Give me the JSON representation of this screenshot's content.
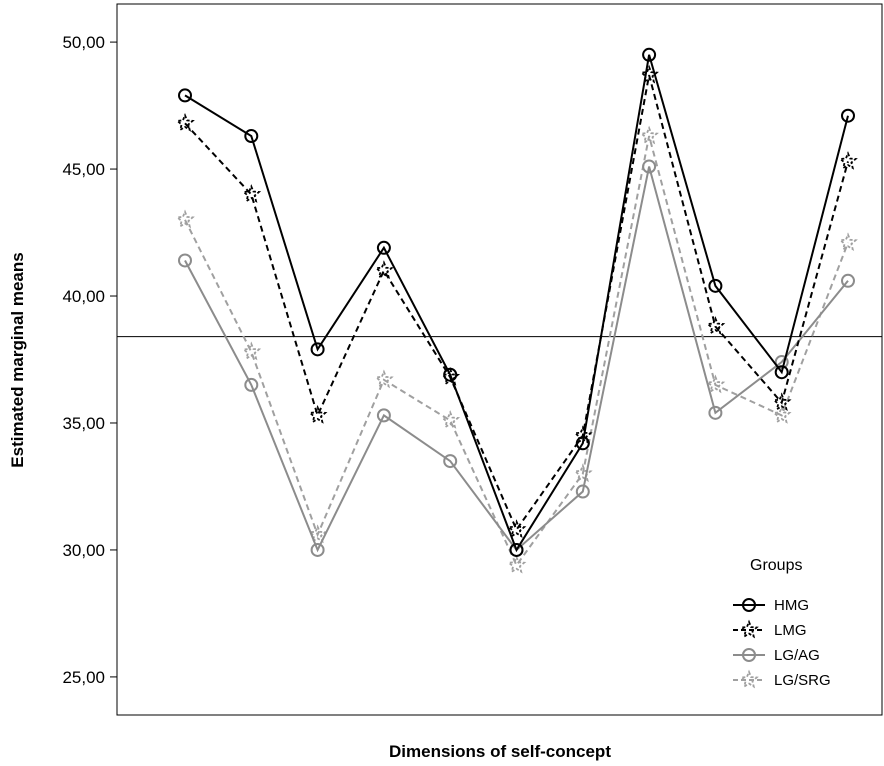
{
  "chart_data": {
    "type": "line",
    "xlabel": "Dimensions of self-concept",
    "ylabel": "Estimated marginal means",
    "ylim": [
      23.5,
      51.5
    ],
    "yticks": [
      "25,00",
      "30,00",
      "35,00",
      "40,00",
      "45,00",
      "50,00"
    ],
    "reference_line": 38.4,
    "grid": false,
    "legend": {
      "title": "Groups",
      "placement": "bottom-right"
    },
    "x": [
      1,
      2,
      3,
      4,
      5,
      6,
      7,
      8,
      9,
      10,
      11
    ],
    "series": [
      {
        "name": "HMG",
        "color": "#000000",
        "dash": "solid",
        "marker": "circle",
        "values": [
          47.9,
          46.3,
          37.9,
          41.9,
          36.9,
          30.0,
          34.2,
          49.5,
          40.4,
          37.0,
          47.1
        ]
      },
      {
        "name": "LMG",
        "color": "#000000",
        "dash": "dashed",
        "marker": "star",
        "values": [
          46.8,
          44.0,
          35.3,
          41.0,
          36.8,
          30.8,
          34.5,
          48.7,
          38.8,
          35.8,
          45.3
        ]
      },
      {
        "name": "LG/AG",
        "color": "#8c8c8c",
        "dash": "solid",
        "marker": "circle",
        "values": [
          41.4,
          36.5,
          30.0,
          35.3,
          33.5,
          30.0,
          32.3,
          45.1,
          35.4,
          37.4,
          40.6
        ]
      },
      {
        "name": "LG/SRG",
        "color": "#a0a0a0",
        "dash": "dashed",
        "marker": "star",
        "values": [
          43.0,
          37.8,
          30.6,
          36.7,
          35.1,
          29.4,
          33.0,
          46.3,
          36.5,
          35.3,
          42.1
        ]
      }
    ]
  }
}
